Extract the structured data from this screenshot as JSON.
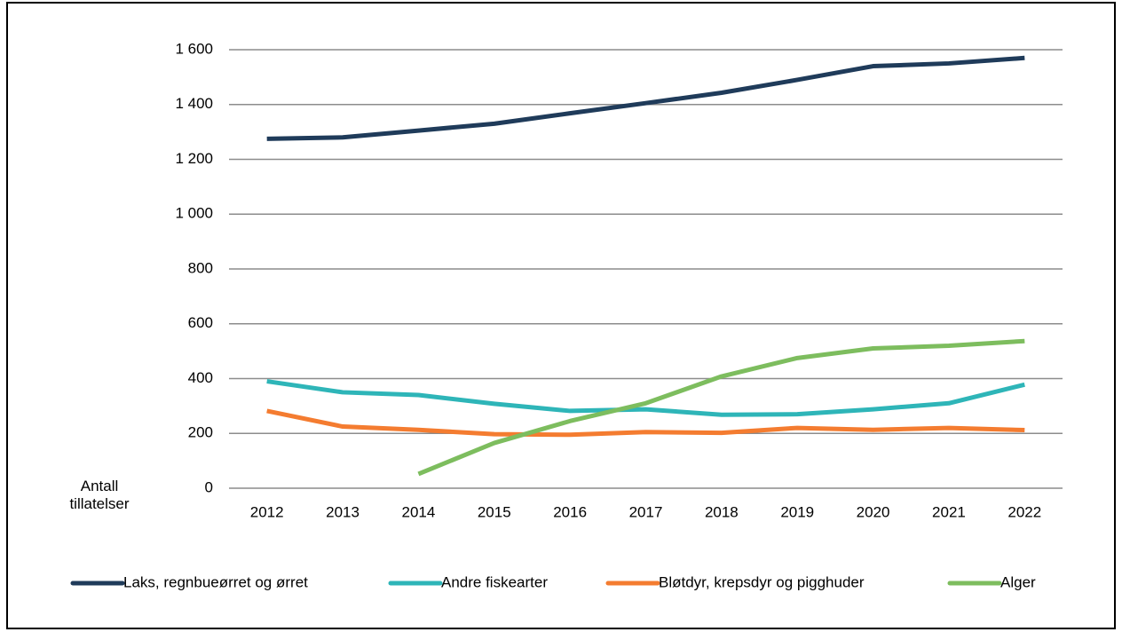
{
  "chart_data": {
    "type": "line",
    "y_label": "Antall tillatelser",
    "categories": [
      "2012",
      "2013",
      "2014",
      "2015",
      "2016",
      "2017",
      "2018",
      "2019",
      "2020",
      "2021",
      "2022"
    ],
    "series": [
      {
        "name": "Laks, regnbueørret og ørret",
        "color": "#1f3b5a",
        "values": [
          1275,
          1280,
          1305,
          1330,
          1368,
          1405,
          1443,
          1490,
          1540,
          1550,
          1570
        ]
      },
      {
        "name": "Andre fiskearter",
        "color": "#2eb5b8",
        "values": [
          390,
          350,
          340,
          308,
          282,
          288,
          268,
          270,
          288,
          310,
          378
        ]
      },
      {
        "name": "Bløtdyr, krepsdyr og pigghuder",
        "color": "#f47c30",
        "values": [
          282,
          225,
          213,
          197,
          195,
          205,
          202,
          220,
          213,
          220,
          212
        ]
      },
      {
        "name": "Alger",
        "color": "#7dbd5e",
        "values": [
          null,
          null,
          52,
          165,
          245,
          310,
          408,
          475,
          510,
          520,
          537
        ]
      }
    ],
    "ylim": [
      0,
      1600
    ],
    "yticks": [
      0,
      200,
      400,
      600,
      800,
      {
        "value": 1000,
        "label": "1 000"
      },
      {
        "value": 1200,
        "label": "1 200"
      },
      {
        "value": 1400,
        "label": "1 400"
      },
      {
        "value": 1600,
        "label": "1 600"
      }
    ],
    "grid": true
  }
}
